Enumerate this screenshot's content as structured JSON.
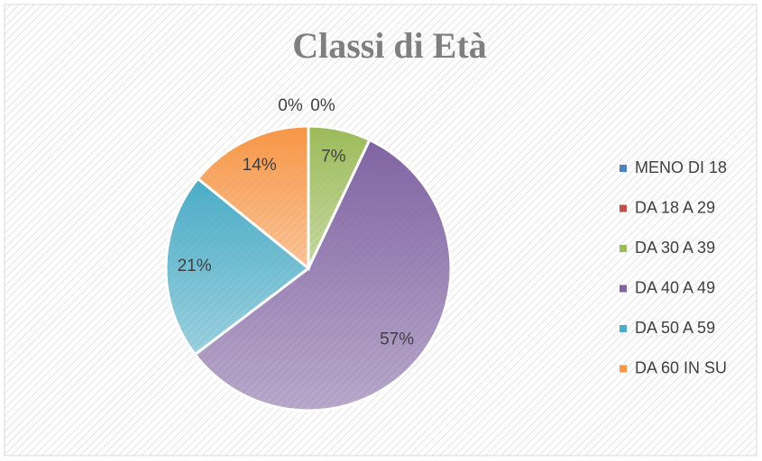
{
  "chart_data": {
    "type": "pie",
    "title": "Classi di Età",
    "categories": [
      "MENO DI 18",
      "DA 18 A 29",
      "DA 30 A 39",
      "DA 40 A 49",
      "DA 50 A 59",
      "DA 60 IN SU"
    ],
    "values": [
      0,
      0,
      7,
      57,
      21,
      14
    ],
    "value_labels": [
      "0%",
      "0%",
      "7%",
      "57%",
      "21%",
      "14%"
    ],
    "colors": [
      "#4f81bd",
      "#c0504d",
      "#9bbb59",
      "#8064a2",
      "#4bacc6",
      "#f79646"
    ],
    "legend": "right"
  }
}
